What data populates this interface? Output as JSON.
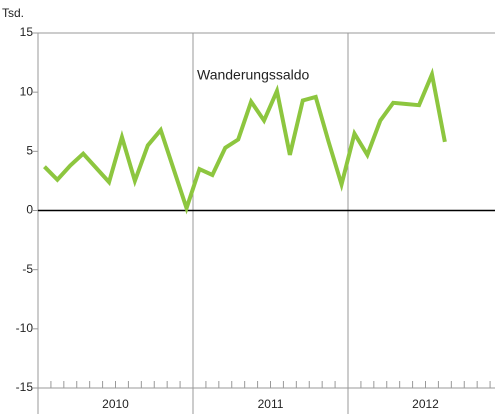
{
  "chart_data": {
    "type": "line",
    "y_label": "Tsd.",
    "annotation": "Wanderungssaldo",
    "categories": [
      null,
      null,
      null,
      null,
      null,
      null,
      null,
      null,
      null,
      null,
      null,
      null,
      null,
      null,
      null,
      null,
      null,
      null,
      null,
      null,
      null,
      null,
      null,
      null,
      null,
      null,
      null,
      null,
      null,
      null,
      null,
      null
    ],
    "x_labels": [
      "2010",
      "2011",
      "2012"
    ],
    "series": [
      {
        "name": "Wanderungssaldo",
        "color": "#8dc63f",
        "values": [
          3.7,
          2.6,
          3.8,
          4.8,
          3.6,
          2.4,
          6.2,
          2.5,
          5.5,
          6.8,
          3.5,
          0.2,
          3.5,
          3.0,
          5.3,
          6.0,
          9.2,
          7.6,
          10.1,
          4.7,
          9.3,
          9.6,
          5.8,
          2.2,
          6.5,
          4.7,
          7.6,
          9.1,
          9.0,
          8.9,
          11.5,
          5.8
        ]
      }
    ],
    "ylim": [
      -15,
      15
    ],
    "yticks": [
      -15,
      -10,
      -5,
      0,
      5,
      10,
      15
    ],
    "grid": false
  }
}
